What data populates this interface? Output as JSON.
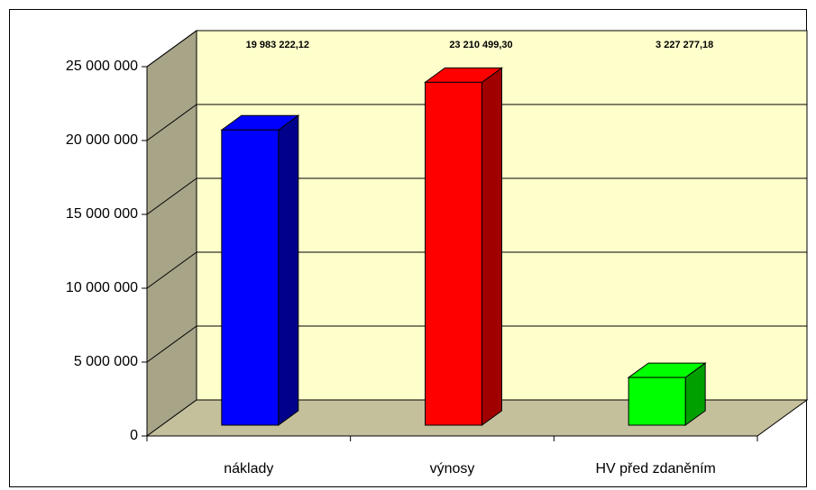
{
  "chart_data": {
    "type": "bar3d",
    "categories": [
      "náklady",
      "výnosy",
      "HV před zdaněním"
    ],
    "values": [
      19983222.12,
      23210499.3,
      3227277.18
    ],
    "value_labels": [
      "19 983  222,12",
      "23 210  499,30",
      "3 227  277,18"
    ],
    "colors": [
      "#0000ff",
      "#ff0000",
      "#00ff00"
    ],
    "side_colors": [
      "#00008b",
      "#a00000",
      "#00a000"
    ],
    "ylim": [
      0,
      25000000
    ],
    "yticks": [
      {
        "value": 0,
        "label": "0"
      },
      {
        "value": 5000000,
        "label": "5 000 000"
      },
      {
        "value": 10000000,
        "label": "10 000 000"
      },
      {
        "value": 15000000,
        "label": "15 000 000"
      },
      {
        "value": 20000000,
        "label": "20 000 000"
      },
      {
        "value": 25000000,
        "label": "25 000 000"
      }
    ],
    "grid": true
  }
}
